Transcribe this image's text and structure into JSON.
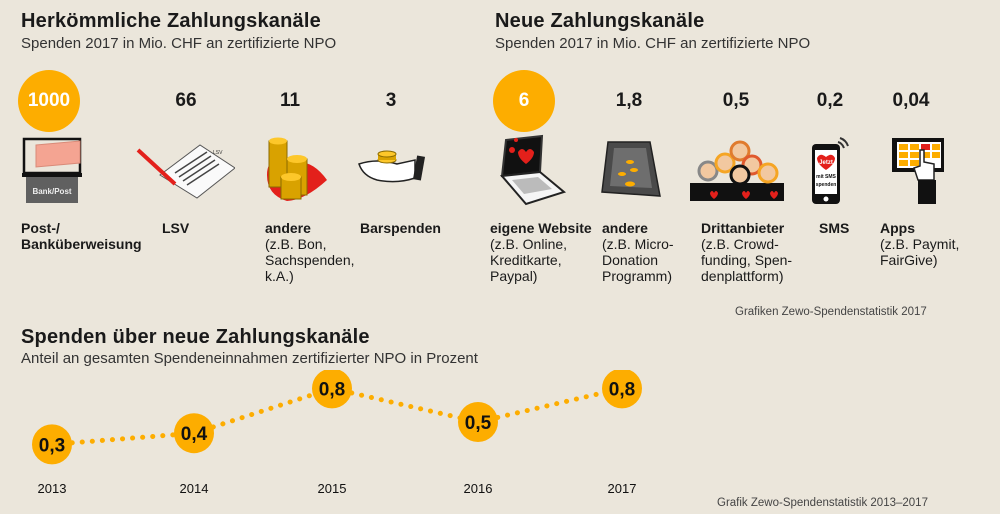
{
  "colors": {
    "accent": "#fdad00",
    "background": "#ebe6db",
    "heart": "#e3201b"
  },
  "traditional": {
    "title": "Herkömmliche Zahlungskanäle",
    "subtitle": "Spenden 2017 in Mio. CHF an zertifizierte NPO",
    "items": [
      {
        "value": "1000",
        "icon": "bank-post-icon",
        "icon_text": "Bank/Post",
        "label": "Post-/ Banküberweisung",
        "detail": ""
      },
      {
        "value": "66",
        "icon": "lsv-document-icon",
        "icon_text": "LSV",
        "label": "LSV",
        "detail": ""
      },
      {
        "value": "11",
        "icon": "coin-stacks-heart-icon",
        "label": "andere",
        "detail": "(z.B. Bon, Sachspenden, k.A.)"
      },
      {
        "value": "3",
        "icon": "hand-coins-icon",
        "label": "Barspenden",
        "detail": ""
      }
    ]
  },
  "new_channels": {
    "title": "Neue Zahlungskanäle",
    "subtitle": "Spenden 2017 in Mio. CHF an zertifizierte NPO",
    "items": [
      {
        "value": "6",
        "icon": "laptop-heart-icon",
        "label": "eigene Website",
        "detail": "(z.B. Online, Kreditkarte, Paypal)"
      },
      {
        "value": "1,8",
        "icon": "micro-donation-icon",
        "label": "andere",
        "detail": "(z.B. Micro-Donation Programm)"
      },
      {
        "value": "0,5",
        "icon": "crowd-people-icon",
        "label": "Drittanbieter",
        "detail": "(z.B. Crowd-funding, Spen-denplattform)"
      },
      {
        "value": "0,2",
        "icon": "sms-phone-icon",
        "icon_text": [
          "Jetzt",
          "mit SMS",
          "spenden"
        ],
        "label": "SMS",
        "detail": ""
      },
      {
        "value": "0,04",
        "icon": "tablet-app-icon",
        "label": "Apps",
        "detail": "(z.B. Paymit, FairGive)"
      }
    ],
    "source": "Grafiken Zewo-Spendenstatistik 2017"
  },
  "chart_data": {
    "type": "line",
    "title": "Spenden über neue Zahlungskanäle",
    "subtitle": "Anteil an gesamten Spendeneinnahmen zertifizierter NPO in Prozent",
    "categories": [
      "2013",
      "2014",
      "2015",
      "2016",
      "2017"
    ],
    "values": [
      0.3,
      0.4,
      0.8,
      0.5,
      0.8
    ],
    "labels": [
      "0,3",
      "0,4",
      "0,8",
      "0,5",
      "0,8"
    ],
    "ylim": [
      0,
      1
    ],
    "grid": false,
    "source": "Grafik Zewo-Spendenstatistik 2013–2017"
  }
}
